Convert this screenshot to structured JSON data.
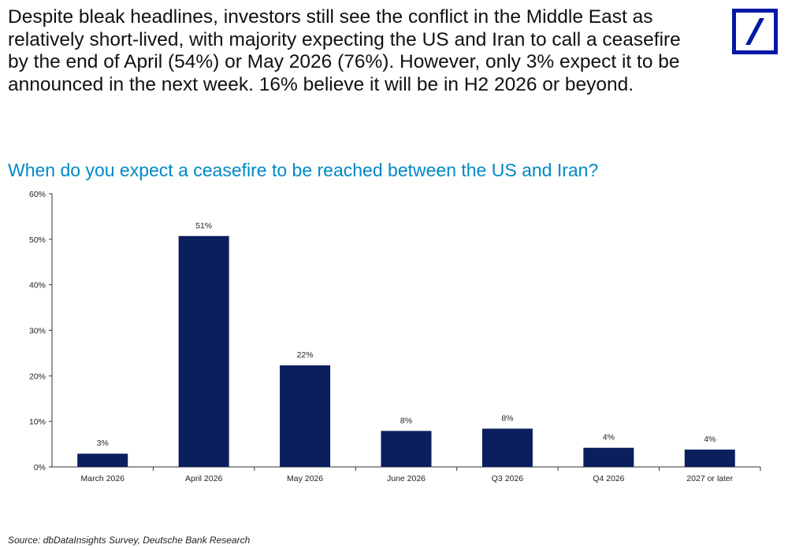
{
  "headline": "Despite bleak headlines, investors still see the conflict in the Middle East as relatively short-lived, with majority expecting the US and Iran to call a ceasefire by the end of April (54%) or May 2026 (76%). However, only 3% expect it to be announced in the next week. 16% believe it will be in H2 2026 or beyond.",
  "logo": {
    "icon": "deutsche-bank-logo",
    "border_color": "#0018a8"
  },
  "source": "Source: dbDataInsights Survey, Deutsche Bank Research",
  "chart_data": {
    "type": "bar",
    "title": "When do you expect a ceasefire to be reached between the US and Iran?",
    "xlabel": "",
    "ylabel": "",
    "categories": [
      "March 2026",
      "April 2026",
      "May 2026",
      "June 2026",
      "Q3 2026",
      "Q4 2026",
      "2027 or later"
    ],
    "values": [
      2.9,
      50.7,
      22.3,
      7.9,
      8.4,
      4.2,
      3.8
    ],
    "data_labels": [
      "3%",
      "51%",
      "22%",
      "8%",
      "8%",
      "4%",
      "4%"
    ],
    "ylim": [
      0,
      60
    ],
    "yticks": [
      0,
      10,
      20,
      30,
      40,
      50,
      60
    ],
    "ytick_labels": [
      "0%",
      "10%",
      "20%",
      "30%",
      "40%",
      "50%",
      "60%"
    ],
    "grid": false,
    "legend": "none",
    "bar_color": "#0a1f5c",
    "title_color": "#0088c8"
  }
}
